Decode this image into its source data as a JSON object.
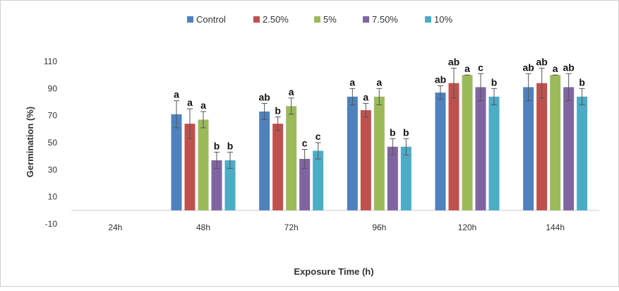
{
  "chart_data": {
    "type": "bar",
    "title": "",
    "xlabel": "Exposure Time (h)",
    "ylabel": "Germination (%)",
    "ylim": [
      -10,
      110
    ],
    "yticks": [
      -10,
      10,
      30,
      50,
      70,
      90,
      110
    ],
    "grid": false,
    "legend_position": "top",
    "categories": [
      "24h",
      "48h",
      "72h",
      "96h",
      "120h",
      "144h"
    ],
    "series": [
      {
        "name": "Control",
        "color": "#4F81BD",
        "values": [
          0,
          71,
          73,
          84,
          87,
          91
        ],
        "errors": [
          0,
          10,
          6,
          6,
          5,
          10
        ],
        "letters": [
          "",
          "a",
          "ab",
          "a",
          "ab",
          "ab"
        ]
      },
      {
        "name": "2.50%",
        "color": "#C0504D",
        "values": [
          0,
          64,
          64,
          74,
          94,
          94
        ],
        "errors": [
          0,
          11,
          5,
          5,
          11,
          11
        ],
        "letters": [
          "",
          "a",
          "b",
          "a",
          "ab",
          "ab"
        ]
      },
      {
        "name": "5%",
        "color": "#9BBB59",
        "values": [
          0,
          67,
          77,
          84,
          100,
          100
        ],
        "errors": [
          0,
          6,
          6,
          6,
          0,
          0
        ],
        "letters": [
          "",
          "a",
          "a",
          "a",
          "a",
          "a"
        ]
      },
      {
        "name": "7.50%",
        "color": "#8064A2",
        "values": [
          0,
          37,
          38,
          47,
          91,
          91
        ],
        "errors": [
          0,
          6,
          7,
          6,
          10,
          10
        ],
        "letters": [
          "",
          "b",
          "c",
          "b",
          "c",
          "ab"
        ]
      },
      {
        "name": "10%",
        "color": "#4BACC6",
        "values": [
          0,
          37,
          44,
          47,
          84,
          84
        ],
        "errors": [
          0,
          6,
          6,
          6,
          6,
          6
        ],
        "letters": [
          "",
          "b",
          "c",
          "b",
          "b",
          "b"
        ]
      }
    ]
  }
}
